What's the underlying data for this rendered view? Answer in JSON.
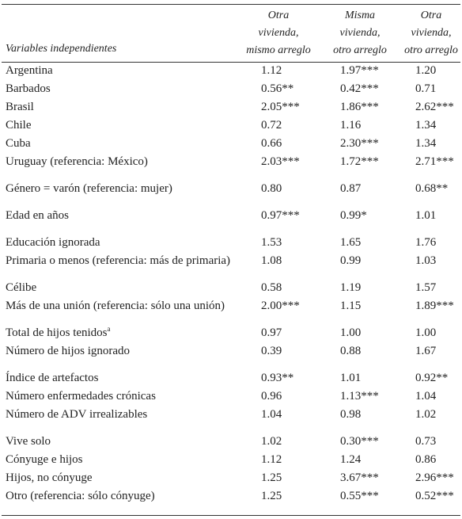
{
  "header": {
    "row_header": "Variables independientes",
    "columns": [
      [
        "Otra",
        "vivienda,",
        "mismo arreglo"
      ],
      [
        "Misma",
        "vivienda,",
        "otro arreglo"
      ],
      [
        "Otra",
        "vivienda,",
        "otro arreglo"
      ]
    ]
  },
  "groups": [
    [
      {
        "label": "Argentina",
        "cells": [
          "1.12",
          "1.97***",
          "1.20"
        ]
      },
      {
        "label": "Barbados",
        "cells": [
          "0.56**",
          "0.42***",
          "0.71"
        ]
      },
      {
        "label": "Brasil",
        "cells": [
          "2.05***",
          "1.86***",
          "2.62***"
        ]
      },
      {
        "label": "Chile",
        "cells": [
          "0.72",
          "1.16",
          "1.34"
        ]
      },
      {
        "label": "Cuba",
        "cells": [
          "0.66",
          "2.30***",
          "1.34"
        ]
      },
      {
        "label": "Uruguay (referencia: México)",
        "cells": [
          "2.03***",
          "1.72***",
          "2.71***"
        ]
      }
    ],
    [
      {
        "label": "Género = varón (referencia: mujer)",
        "cells": [
          "0.80",
          "0.87",
          "0.68**"
        ]
      }
    ],
    [
      {
        "label": "Edad en años",
        "cells": [
          "0.97***",
          "0.99*",
          "1.01"
        ]
      }
    ],
    [
      {
        "label": "Educación ignorada",
        "cells": [
          "1.53",
          "1.65",
          "1.76"
        ]
      },
      {
        "label": "Primaria o menos (referencia: más de primaria)",
        "cells": [
          "1.08",
          "0.99",
          "1.03"
        ]
      }
    ],
    [
      {
        "label": "Célibe",
        "cells": [
          "0.58",
          "1.19",
          "1.57"
        ]
      },
      {
        "label": "Más de una unión (referencia: sólo una unión)",
        "cells": [
          "2.00***",
          "1.15",
          "1.89***"
        ]
      }
    ],
    [
      {
        "label": "Total de hijos tenidos",
        "sup": "a",
        "cells": [
          "0.97",
          "1.00",
          "1.00"
        ]
      },
      {
        "label": "Número de hijos ignorado",
        "cells": [
          "0.39",
          "0.88",
          "1.67"
        ]
      }
    ],
    [
      {
        "label": "Índice de artefactos",
        "cells": [
          "0.93**",
          "1.01",
          "0.92**"
        ]
      },
      {
        "label": "Número enfermedades crónicas",
        "cells": [
          "0.96",
          "1.13***",
          "1.04"
        ]
      },
      {
        "label": "Número de ADV irrealizables",
        "cells": [
          "1.04",
          "0.98",
          "1.02"
        ]
      }
    ],
    [
      {
        "label": "Vive solo",
        "cells": [
          "1.02",
          "0.30***",
          "0.73"
        ]
      },
      {
        "label": "Cónyuge e hijos",
        "cells": [
          "1.12",
          "1.24",
          "0.86"
        ]
      },
      {
        "label": "Hijos, no cónyuge",
        "cells": [
          "1.25",
          "3.67***",
          "2.96***"
        ]
      },
      {
        "label": "Otro (referencia: sólo cónyuge)",
        "cells": [
          "1.25",
          "0.55***",
          "0.52***"
        ]
      }
    ]
  ]
}
